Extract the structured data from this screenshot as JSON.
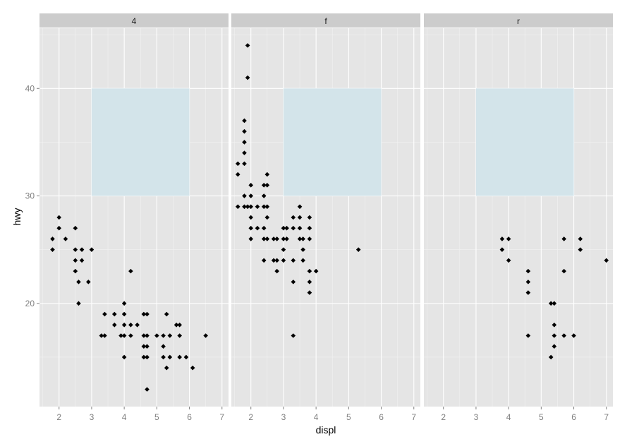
{
  "chart_data": {
    "type": "scatter",
    "title": "",
    "xlabel": "displ",
    "ylabel": "hwy",
    "xlim": [
      1.4,
      7.2
    ],
    "ylim": [
      10.4,
      45.6
    ],
    "x_ticks": [
      2,
      3,
      4,
      5,
      6,
      7
    ],
    "y_ticks": [
      20,
      30,
      40
    ],
    "grid": true,
    "colors": {
      "panel_bg": "#e5e5e5",
      "strip_bg": "#cccccc",
      "grid_major": "#ffffff",
      "grid_minor": "#f2f2f2",
      "rect_fill": "#d3e4ea",
      "point": "#000000",
      "tick_text": "#7f7f7f"
    },
    "highlight_rect": {
      "xmin": 3,
      "xmax": 6,
      "ymin": 30,
      "ymax": 40
    },
    "facets": [
      {
        "label": "4",
        "points": [
          [
            1.8,
            26
          ],
          [
            1.8,
            25
          ],
          [
            2.0,
            28
          ],
          [
            2.0,
            27
          ],
          [
            2.2,
            26
          ],
          [
            2.5,
            27
          ],
          [
            2.5,
            25
          ],
          [
            2.5,
            24
          ],
          [
            2.5,
            23
          ],
          [
            2.7,
            25
          ],
          [
            2.7,
            24
          ],
          [
            2.6,
            22
          ],
          [
            2.6,
            20
          ],
          [
            3.0,
            25
          ],
          [
            2.9,
            22
          ],
          [
            3.3,
            17
          ],
          [
            3.4,
            17
          ],
          [
            3.4,
            19
          ],
          [
            3.7,
            19
          ],
          [
            3.7,
            18
          ],
          [
            3.9,
            17
          ],
          [
            4.0,
            20
          ],
          [
            4.0,
            19
          ],
          [
            4.0,
            18
          ],
          [
            4.0,
            17
          ],
          [
            4.0,
            15
          ],
          [
            4.2,
            23
          ],
          [
            4.2,
            18
          ],
          [
            4.2,
            17
          ],
          [
            4.4,
            18
          ],
          [
            4.6,
            19
          ],
          [
            4.7,
            19
          ],
          [
            4.6,
            17
          ],
          [
            4.7,
            17
          ],
          [
            4.6,
            16
          ],
          [
            4.7,
            16
          ],
          [
            4.6,
            15
          ],
          [
            4.7,
            15
          ],
          [
            4.7,
            12
          ],
          [
            5.0,
            17
          ],
          [
            5.2,
            17
          ],
          [
            5.2,
            16
          ],
          [
            5.2,
            15
          ],
          [
            5.3,
            19
          ],
          [
            5.3,
            14
          ],
          [
            5.4,
            17
          ],
          [
            5.4,
            15
          ],
          [
            5.6,
            18
          ],
          [
            5.7,
            18
          ],
          [
            5.7,
            17
          ],
          [
            5.7,
            15
          ],
          [
            5.9,
            15
          ],
          [
            6.1,
            14
          ],
          [
            6.5,
            17
          ]
        ]
      },
      {
        "label": "f",
        "points": [
          [
            1.6,
            33
          ],
          [
            1.6,
            32
          ],
          [
            1.6,
            29
          ],
          [
            1.8,
            37
          ],
          [
            1.8,
            36
          ],
          [
            1.8,
            35
          ],
          [
            1.8,
            34
          ],
          [
            1.8,
            33
          ],
          [
            1.8,
            30
          ],
          [
            1.8,
            29
          ],
          [
            1.9,
            44
          ],
          [
            1.9,
            41
          ],
          [
            1.9,
            29
          ],
          [
            2.0,
            31
          ],
          [
            2.0,
            30
          ],
          [
            2.0,
            29
          ],
          [
            2.0,
            28
          ],
          [
            2.0,
            27
          ],
          [
            2.0,
            26
          ],
          [
            2.2,
            29
          ],
          [
            2.2,
            27
          ],
          [
            2.4,
            31
          ],
          [
            2.4,
            30
          ],
          [
            2.4,
            29
          ],
          [
            2.4,
            27
          ],
          [
            2.4,
            26
          ],
          [
            2.4,
            24
          ],
          [
            2.5,
            32
          ],
          [
            2.5,
            31
          ],
          [
            2.5,
            29
          ],
          [
            2.5,
            28
          ],
          [
            2.5,
            26
          ],
          [
            2.7,
            26
          ],
          [
            2.7,
            24
          ],
          [
            2.8,
            26
          ],
          [
            2.8,
            24
          ],
          [
            2.8,
            23
          ],
          [
            3.0,
            27
          ],
          [
            3.0,
            26
          ],
          [
            3.0,
            25
          ],
          [
            3.0,
            24
          ],
          [
            3.1,
            27
          ],
          [
            3.1,
            26
          ],
          [
            3.3,
            28
          ],
          [
            3.3,
            27
          ],
          [
            3.3,
            24
          ],
          [
            3.3,
            22
          ],
          [
            3.3,
            17
          ],
          [
            3.5,
            29
          ],
          [
            3.5,
            28
          ],
          [
            3.5,
            27
          ],
          [
            3.5,
            26
          ],
          [
            3.6,
            26
          ],
          [
            3.6,
            25
          ],
          [
            3.6,
            24
          ],
          [
            3.8,
            28
          ],
          [
            3.8,
            27
          ],
          [
            3.8,
            26
          ],
          [
            3.8,
            23
          ],
          [
            3.8,
            22
          ],
          [
            3.8,
            21
          ],
          [
            4.0,
            23
          ],
          [
            5.3,
            25
          ]
        ]
      },
      {
        "label": "r",
        "points": [
          [
            3.8,
            26
          ],
          [
            3.8,
            25
          ],
          [
            4.0,
            26
          ],
          [
            4.0,
            24
          ],
          [
            4.6,
            23
          ],
          [
            4.6,
            22
          ],
          [
            4.6,
            21
          ],
          [
            4.6,
            17
          ],
          [
            5.3,
            20
          ],
          [
            5.3,
            15
          ],
          [
            5.4,
            20
          ],
          [
            5.4,
            18
          ],
          [
            5.4,
            17
          ],
          [
            5.4,
            16
          ],
          [
            5.7,
            26
          ],
          [
            5.7,
            23
          ],
          [
            5.7,
            17
          ],
          [
            6.0,
            17
          ],
          [
            6.2,
            26
          ],
          [
            6.2,
            25
          ],
          [
            7.0,
            24
          ]
        ]
      }
    ]
  }
}
